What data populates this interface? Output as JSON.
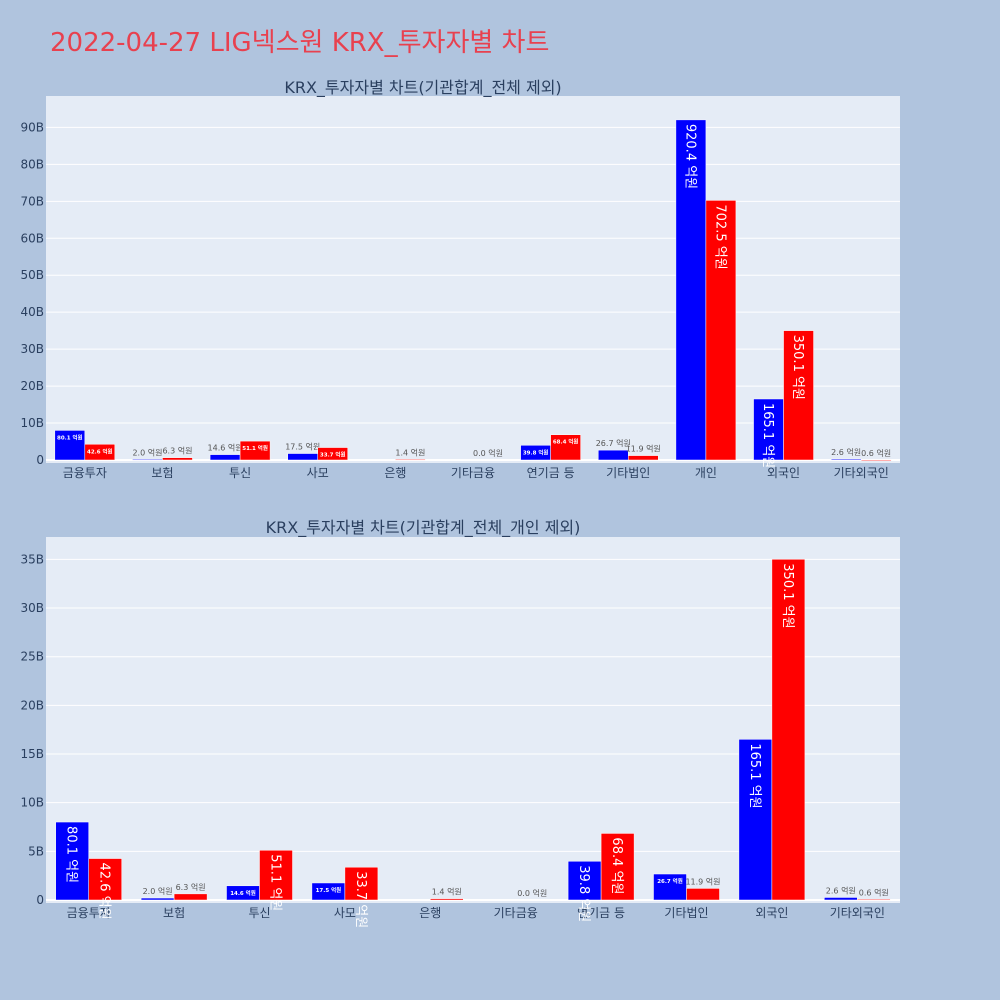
{
  "page_title": "2022-04-27 LIG넥스원 KRX_투자자별 차트",
  "colors": {
    "page_background": "#b0c4de",
    "plot_background": "#e5ecf6",
    "buy": "#0000ff",
    "sell": "#ff0000",
    "title": "#e8414f",
    "axis_text": "#2a3f5f",
    "outside_label": "#555555",
    "inside_label": "#ffffff"
  },
  "chart_data": [
    {
      "type": "bar",
      "title": "KRX_투자자별 차트(기관합계_전체 제외)",
      "categories": [
        "금융투자",
        "보험",
        "투신",
        "사모",
        "은행",
        "기타금융",
        "연기금 등",
        "기타법인",
        "개인",
        "외국인",
        "기타외국인"
      ],
      "ylim": [
        0,
        98.5
      ],
      "y_tick_values": [
        0,
        10,
        20,
        30,
        40,
        50,
        60,
        70,
        80,
        90
      ],
      "y_tick_labels": [
        "0",
        "10B",
        "20B",
        "30B",
        "40B",
        "50B",
        "60B",
        "70B",
        "80B",
        "90B"
      ],
      "grid": true,
      "series": [
        {
          "color": "#0000ff",
          "values": [
            8.01,
            0.2,
            1.46,
            1.75,
            0,
            0,
            3.98,
            2.67,
            92.04,
            16.51,
            0.26
          ],
          "labels": [
            "80.1 억원",
            "2.0 억원",
            "14.6 억원",
            "17.5 억원",
            "",
            "",
            "39.8 억원",
            "26.7 억원",
            "920.4 억원",
            "165.1 억원",
            "2.6 억원"
          ]
        },
        {
          "color": "#ff0000",
          "values": [
            4.26,
            0.63,
            5.11,
            3.37,
            0.14,
            0,
            6.84,
            1.19,
            70.25,
            35.01,
            0.06
          ],
          "labels": [
            "42.6 억원",
            "6.3 억원",
            "51.1 억원",
            "33.7 억원",
            "1.4 억원",
            "0.0 억원",
            "68.4 억원",
            "11.9 억원",
            "702.5 억원",
            "350.1 억원",
            "0.6 억원"
          ]
        }
      ]
    },
    {
      "type": "bar",
      "title": "KRX_투자자별 차트(기관합계_전체_개인 제외)",
      "categories": [
        "금융투자",
        "보험",
        "투신",
        "사모",
        "은행",
        "기타금융",
        "연기금 등",
        "기타법인",
        "외국인",
        "기타외국인"
      ],
      "ylim": [
        0,
        37.3
      ],
      "y_tick_values": [
        0,
        5,
        10,
        15,
        20,
        25,
        30,
        35
      ],
      "y_tick_labels": [
        "0",
        "5B",
        "10B",
        "15B",
        "20B",
        "25B",
        "30B",
        "35B"
      ],
      "grid": true,
      "series": [
        {
          "color": "#0000ff",
          "values": [
            8.01,
            0.2,
            1.46,
            1.75,
            0,
            0,
            3.98,
            2.67,
            16.51,
            0.26
          ],
          "labels": [
            "80.1 억원",
            "2.0 억원",
            "14.6 억원",
            "17.5 억원",
            "",
            "",
            "39.8 억원",
            "26.7 억원",
            "165.1 억원",
            "2.6 억원"
          ]
        },
        {
          "color": "#ff0000",
          "values": [
            4.26,
            0.63,
            5.11,
            3.37,
            0.14,
            0,
            6.84,
            1.19,
            35.01,
            0.06
          ],
          "labels": [
            "42.6 억원",
            "6.3 억원",
            "51.1 억원",
            "33.7 억원",
            "1.4 억원",
            "0.0 억원",
            "68.4 억원",
            "11.9 억원",
            "350.1 억원",
            "0.6 억원"
          ]
        }
      ]
    }
  ]
}
